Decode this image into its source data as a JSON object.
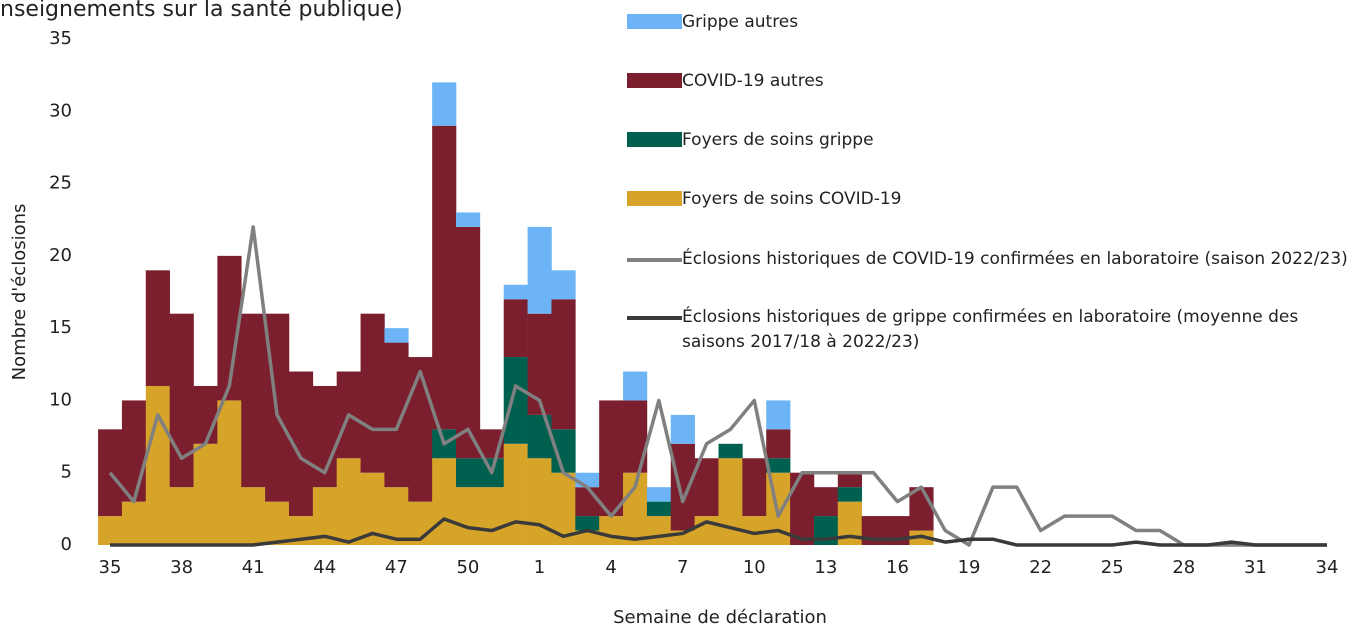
{
  "chart_data": {
    "type": "bar",
    "stacked": true,
    "subtitle": "nseignements sur la santé publique)",
    "y_label": "Nombre d'éclosions",
    "x_label": "Semaine de déclaration",
    "categories": [
      "35",
      null,
      null,
      "38",
      null,
      null,
      "41",
      null,
      null,
      "44",
      null,
      null,
      "47",
      null,
      null,
      "50",
      null,
      null,
      "1",
      null,
      null,
      "4",
      null,
      null,
      "7",
      null,
      null,
      "10",
      null,
      null,
      "13",
      null,
      null,
      "16",
      null,
      null,
      "19",
      null,
      null,
      "22",
      null,
      null,
      "25",
      null,
      null,
      "28",
      null,
      null,
      "31",
      null,
      null,
      "34"
    ],
    "ylim": [
      0,
      35
    ],
    "yticks": [
      0,
      5,
      10,
      15,
      20,
      25,
      30,
      35
    ],
    "grid": false,
    "series": [
      {
        "name": "Grippe autres",
        "type": "bar",
        "color": "#6cb4f5",
        "values": [
          0,
          0,
          0,
          0,
          0,
          0,
          0,
          0,
          0,
          0,
          0,
          0,
          1,
          0,
          3,
          1,
          0,
          1,
          6,
          2,
          1,
          0,
          2,
          1,
          2,
          0,
          0,
          0,
          2,
          0,
          0,
          0,
          0,
          0,
          0,
          0,
          0,
          0,
          0,
          0,
          0,
          0,
          0,
          0,
          0,
          0,
          0,
          0,
          0,
          0,
          0,
          0
        ]
      },
      {
        "name": "COVID-19 autres",
        "type": "bar",
        "color": "#7b1f2e",
        "values": [
          6,
          7,
          8,
          12,
          4,
          10,
          12,
          13,
          10,
          7,
          6,
          11,
          10,
          10,
          21,
          16,
          2,
          4,
          7,
          9,
          2,
          8,
          5,
          0,
          6,
          4,
          0,
          4,
          2,
          5,
          2,
          1,
          2,
          2,
          3,
          0,
          0,
          0,
          0,
          0,
          0,
          0,
          0,
          0,
          0,
          0,
          0,
          0,
          0,
          0,
          0,
          0
        ]
      },
      {
        "name": "Foyers de soins  grippe",
        "type": "bar",
        "color": "#00604f",
        "values": [
          0,
          0,
          0,
          0,
          0,
          0,
          0,
          0,
          0,
          0,
          0,
          0,
          0,
          0,
          2,
          2,
          2,
          6,
          3,
          3,
          1,
          0,
          0,
          1,
          0,
          0,
          1,
          0,
          1,
          0,
          2,
          1,
          0,
          0,
          0,
          0,
          0,
          0,
          0,
          0,
          0,
          0,
          0,
          0,
          0,
          0,
          0,
          0,
          0,
          0,
          0,
          0
        ]
      },
      {
        "name": "Foyers de soins  COVID-19",
        "type": "bar",
        "color": "#d6a429",
        "values": [
          2,
          3,
          11,
          4,
          7,
          10,
          4,
          3,
          2,
          4,
          6,
          5,
          4,
          3,
          6,
          4,
          4,
          7,
          6,
          5,
          1,
          2,
          5,
          2,
          1,
          2,
          6,
          2,
          5,
          0,
          0,
          3,
          0,
          0,
          1,
          0,
          0,
          0,
          0,
          0,
          0,
          0,
          0,
          0,
          0,
          0,
          0,
          0,
          0,
          0,
          0,
          0
        ]
      },
      {
        "name": "Éclosions historiques de COVID-19 confirmées en laboratoire (saison 2022/23)",
        "type": "line",
        "color": "#808080",
        "values": [
          5,
          3,
          9,
          6,
          7,
          11,
          22,
          9,
          6,
          5,
          9,
          8,
          8,
          12,
          7,
          8,
          5,
          11,
          10,
          5,
          4,
          2,
          4,
          10,
          3,
          7,
          8,
          10,
          2,
          5,
          5,
          5,
          5,
          3,
          4,
          1,
          0,
          4,
          4,
          1,
          2,
          2,
          2,
          1,
          1,
          0,
          0,
          0,
          0,
          0,
          0,
          0
        ]
      },
      {
        "name": "Éclosions historiques de grippe confirmées en laboratoire (moyenne des saisons 2017/18 à 2022/23)",
        "type": "line",
        "color": "#3a3a3a",
        "values": [
          0,
          0,
          0,
          0,
          0,
          0,
          0,
          0.2,
          0.4,
          0.6,
          0.2,
          0.8,
          0.4,
          0.4,
          1.8,
          1.2,
          1,
          1.6,
          1.4,
          0.6,
          1,
          0.6,
          0.4,
          0.6,
          0.8,
          1.6,
          1.2,
          0.8,
          1,
          0.4,
          0.4,
          0.6,
          0.4,
          0.4,
          0.6,
          0.2,
          0.4,
          0.4,
          0,
          0,
          0,
          0,
          0,
          0.2,
          0,
          0,
          0,
          0.2,
          0,
          0,
          0,
          0
        ]
      }
    ]
  }
}
